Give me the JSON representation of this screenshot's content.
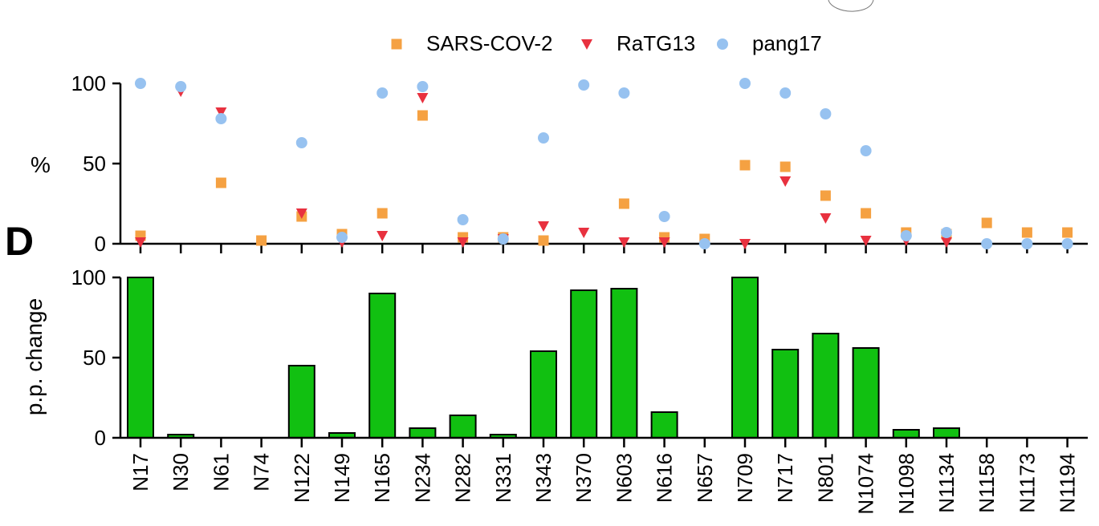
{
  "panel_label": "D",
  "colors": {
    "sars": "#f5a142",
    "ratg13": "#e8313f",
    "pang17": "#97c2f0",
    "bar_fill": "#11c011",
    "bar_stroke": "#000000"
  },
  "chart_data": [
    {
      "type": "scatter",
      "ylabel": "%",
      "ylim": [
        0,
        100
      ],
      "yticks": [
        0,
        50,
        100
      ],
      "legend_position": "top",
      "categories": [
        "N17",
        "N30",
        "N61",
        "N74",
        "N122",
        "N149",
        "N165",
        "N234",
        "N282",
        "N331",
        "N343",
        "N370",
        "N603",
        "N616",
        "N657",
        "N709",
        "N717",
        "N801",
        "N1074",
        "N1098",
        "N1134",
        "N1158",
        "N1173",
        "N1194"
      ],
      "series": [
        {
          "name": "SARS-COV-2",
          "marker": "square",
          "color": "#f5a142",
          "values": [
            5,
            null,
            38,
            2,
            17,
            6,
            19,
            80,
            4,
            4,
            2,
            null,
            25,
            4,
            3,
            49,
            48,
            30,
            19,
            7,
            6,
            13,
            7,
            7
          ]
        },
        {
          "name": "RaTG13",
          "marker": "triangle-down",
          "color": "#e8313f",
          "values": [
            1,
            95,
            82,
            null,
            19,
            1,
            5,
            91,
            1,
            3,
            11,
            7,
            1,
            1,
            null,
            0,
            39,
            16,
            2,
            2,
            1,
            null,
            null,
            null
          ]
        },
        {
          "name": "pang17",
          "marker": "circle",
          "color": "#97c2f0",
          "values": [
            100,
            98,
            78,
            null,
            63,
            4,
            94,
            98,
            15,
            3,
            66,
            99,
            94,
            17,
            0,
            100,
            94,
            81,
            58,
            5,
            7,
            0,
            0,
            0
          ]
        }
      ]
    },
    {
      "type": "bar",
      "ylabel": "p.p. change",
      "ylim": [
        0,
        100
      ],
      "yticks": [
        0,
        50,
        100
      ],
      "categories": [
        "N17",
        "N30",
        "N61",
        "N74",
        "N122",
        "N149",
        "N165",
        "N234",
        "N282",
        "N331",
        "N343",
        "N370",
        "N603",
        "N616",
        "N657",
        "N709",
        "N717",
        "N801",
        "N1074",
        "N1098",
        "N1134",
        "N1158",
        "N1173",
        "N1194"
      ],
      "values": [
        100,
        2,
        0,
        0,
        45,
        3,
        90,
        6,
        14,
        2,
        54,
        92,
        93,
        16,
        0,
        100,
        55,
        65,
        56,
        5,
        6,
        0,
        0,
        0
      ]
    }
  ]
}
